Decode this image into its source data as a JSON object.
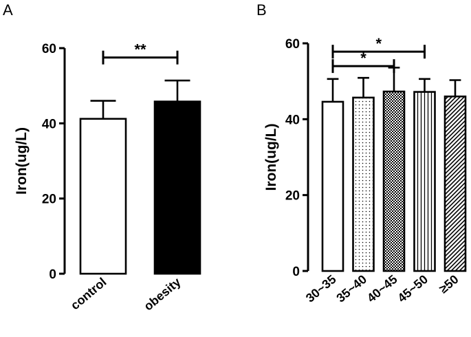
{
  "chart_data": [
    {
      "panel": "A",
      "type": "bar",
      "title": "",
      "xlabel": "",
      "ylabel": "Iron(ug/L)",
      "ylim": [
        0,
        60
      ],
      "yticks": [
        "0",
        "20",
        "40",
        "60"
      ],
      "categories": [
        "control",
        "obesity"
      ],
      "values": [
        41.2,
        45.8
      ],
      "errors": [
        4.8,
        5.6
      ],
      "bar_fills": [
        "white",
        "black"
      ],
      "significance": [
        {
          "from": 0,
          "to": 1,
          "y": 57.5,
          "label": "**"
        }
      ],
      "grid": false,
      "legend": "none"
    },
    {
      "panel": "B",
      "type": "bar",
      "title": "",
      "xlabel": "",
      "ylabel": "Iron(ug/L)",
      "ylim": [
        0,
        60
      ],
      "yticks": [
        "0",
        "20",
        "40",
        "60"
      ],
      "categories": [
        "30~35",
        "35~40",
        "40~45",
        "45~50",
        "≥50"
      ],
      "values": [
        44.6,
        45.7,
        47.3,
        47.2,
        46.0
      ],
      "errors": [
        6.0,
        5.2,
        6.3,
        3.4,
        4.3
      ],
      "bar_fills": [
        "white",
        "dots",
        "crosshatch",
        "vertical-lines",
        "diagonal-lines"
      ],
      "significance": [
        {
          "from": 0,
          "to": 3,
          "y": 57.8,
          "label": "*"
        },
        {
          "from": 0,
          "to": 2,
          "y": 54.0,
          "label": "*"
        }
      ],
      "grid": false,
      "legend": "none"
    }
  ]
}
